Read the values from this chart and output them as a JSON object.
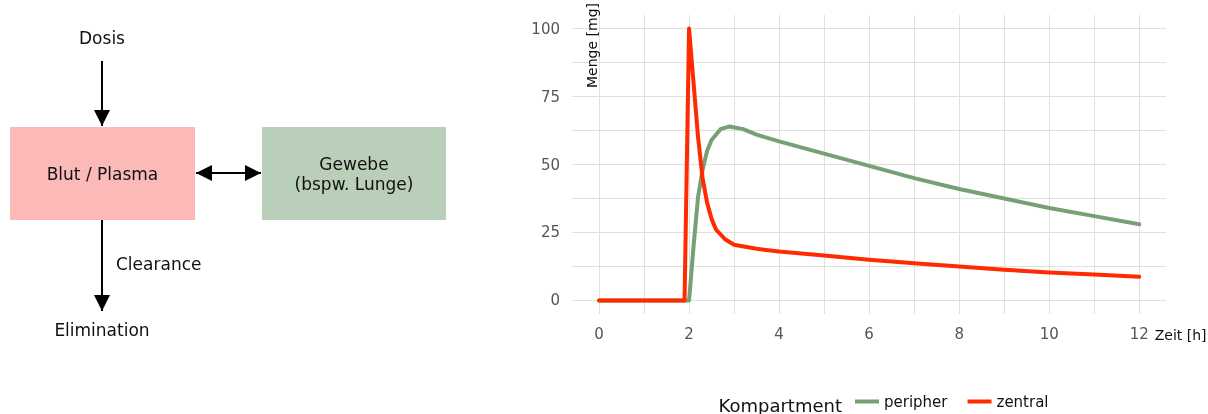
{
  "chart_data": [
    {
      "type": "other",
      "annotations": [
        "Dosis",
        "Blut / Plasma",
        "Gewebe\n(bspw. Lunge)",
        "Clearance",
        "Elimination"
      ],
      "colors": [
        "#fbb9b8",
        "#b9cfb9"
      ]
    },
    {
      "type": "line",
      "xlabel": "Zeit [h]",
      "ylabel": "Menge [mg]",
      "legend_title": "Kompartment",
      "legend": "bottom",
      "grid": true,
      "marker": "none",
      "line_style": "solid",
      "xlim": [
        -0.6,
        12.6
      ],
      "ylim": [
        -5,
        105
      ],
      "xticks": [
        0,
        {
          "value": 1,
          "label": null
        },
        2,
        {
          "value": 3,
          "label": null
        },
        4,
        {
          "value": 5,
          "label": null
        },
        6,
        {
          "value": 7,
          "label": null
        },
        8,
        {
          "value": 9,
          "label": null
        },
        10,
        {
          "value": 11,
          "label": null
        },
        12
      ],
      "yticks": [
        0,
        {
          "value": 12.5,
          "label": null
        },
        25,
        {
          "value": 37.5,
          "label": null
        },
        50,
        {
          "value": 62.5,
          "label": null
        },
        75,
        {
          "value": 87.5,
          "label": null
        },
        100
      ],
      "series": [
        {
          "name": "peripher",
          "color": "#77a077",
          "x": [
            0,
            1,
            2,
            2.1,
            2.2,
            2.3,
            2.4,
            2.5,
            2.7,
            2.9,
            3.2,
            3.5,
            4,
            5,
            6,
            7,
            8,
            9,
            10,
            11,
            12
          ],
          "values": [
            0,
            0,
            0,
            20,
            38,
            48,
            55,
            59,
            63,
            64,
            63,
            61,
            58.5,
            54,
            49.5,
            45,
            41,
            37.5,
            34,
            31,
            28
          ]
        },
        {
          "name": "zentral",
          "color": "#ff2a00",
          "x": [
            0,
            1,
            1.9,
            2,
            2.1,
            2.2,
            2.3,
            2.4,
            2.5,
            2.6,
            2.8,
            3,
            3.5,
            4,
            5,
            6,
            7,
            8,
            9,
            10,
            11,
            12
          ],
          "values": [
            0,
            0,
            0,
            100,
            80,
            60,
            45,
            36,
            30,
            26,
            22.5,
            20.5,
            19,
            18,
            16.5,
            15,
            13.7,
            12.5,
            11.3,
            10.3,
            9.5,
            8.7
          ]
        }
      ]
    }
  ]
}
